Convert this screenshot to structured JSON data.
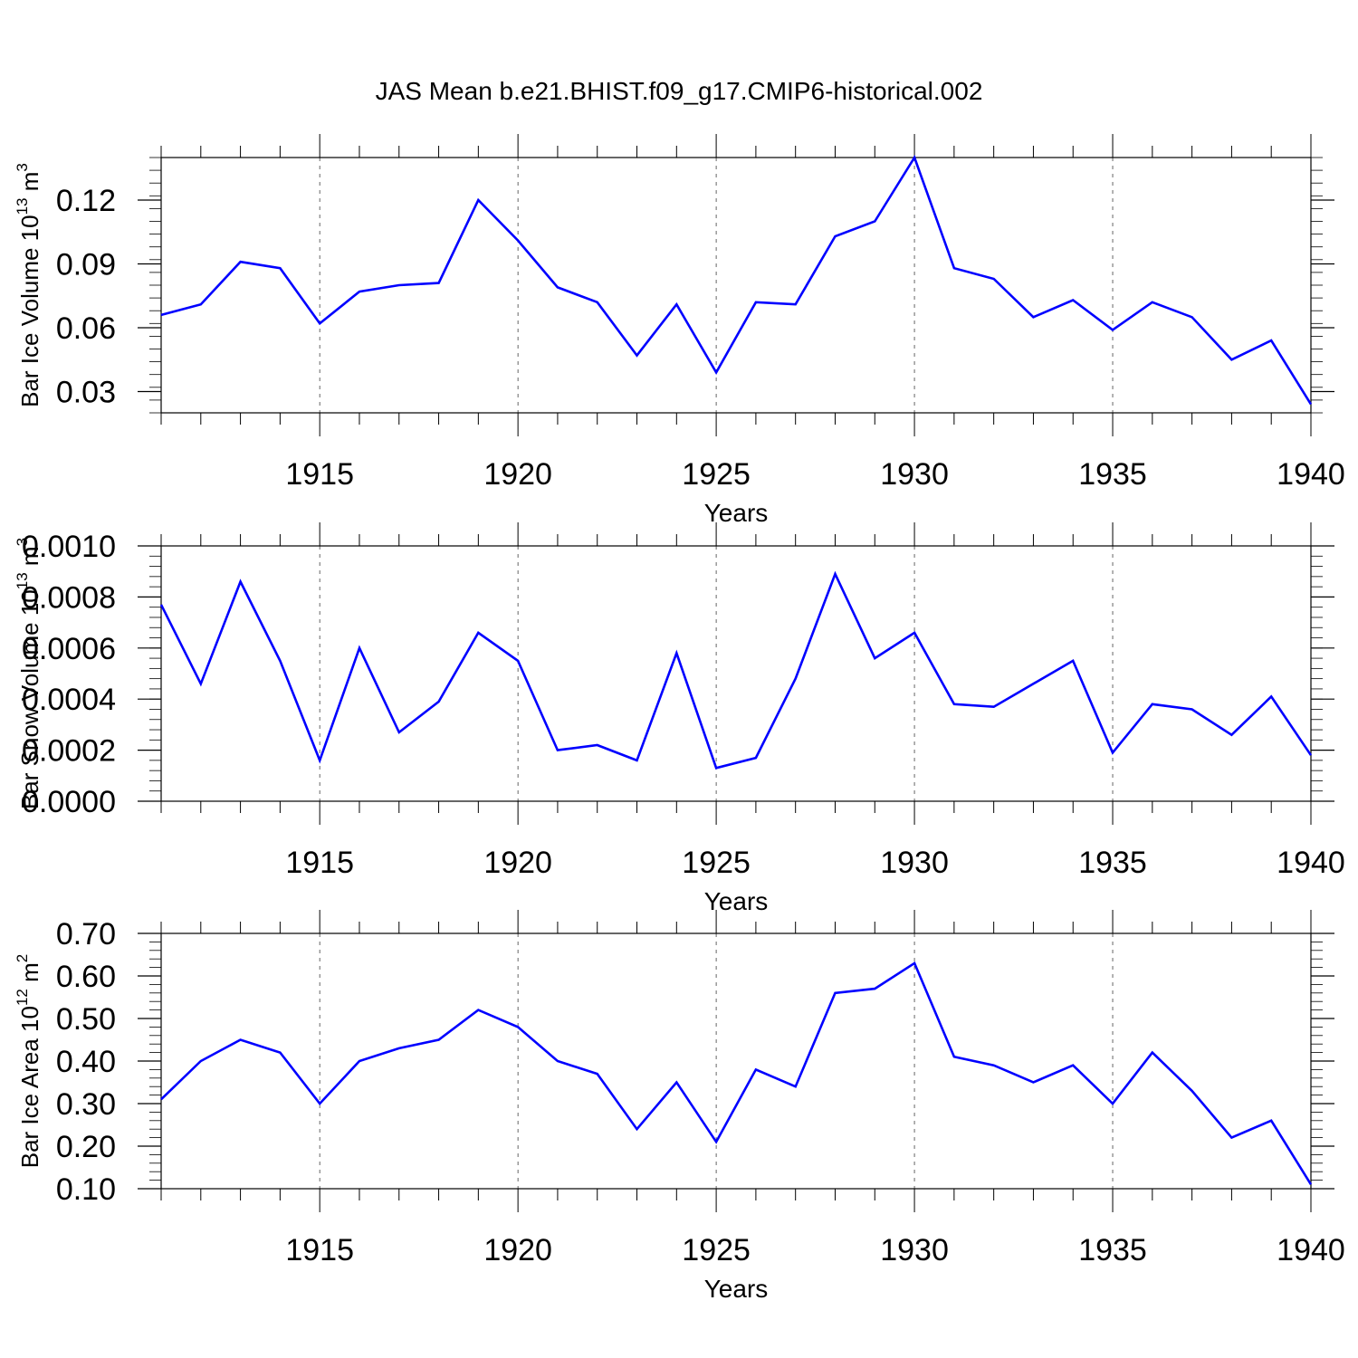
{
  "figure_title": "JAS Mean b.e21.BHIST.f09_g17.CMIP6-historical.002",
  "chart_data": [
    {
      "type": "line",
      "ylabel_main": "Bar Ice Volume 10",
      "ylabel_exp": "13",
      "ylabel_unit": " m",
      "ylabel_unit_exp": "3",
      "xlabel": "Years",
      "xlim": [
        1911,
        1940
      ],
      "ylim": [
        0.02,
        0.14
      ],
      "yticks": [
        0.03,
        0.06,
        0.09,
        0.12
      ],
      "ytick_labels": [
        "0.03",
        "0.06",
        "0.09",
        "0.12"
      ],
      "xticks": [
        1915,
        1920,
        1925,
        1930,
        1935,
        1940
      ],
      "xtick_labels": [
        "1915",
        "1920",
        "1925",
        "1930",
        "1935",
        "1940"
      ],
      "grid": "vertical-dashed-at-major-x",
      "line_color": "#0000ff",
      "x": [
        1911,
        1912,
        1913,
        1914,
        1915,
        1916,
        1917,
        1918,
        1919,
        1920,
        1921,
        1922,
        1923,
        1924,
        1925,
        1926,
        1927,
        1928,
        1929,
        1930,
        1931,
        1932,
        1933,
        1934,
        1935,
        1936,
        1937,
        1938,
        1939,
        1940
      ],
      "y": [
        0.066,
        0.071,
        0.091,
        0.088,
        0.062,
        0.077,
        0.08,
        0.081,
        0.12,
        0.101,
        0.079,
        0.072,
        0.047,
        0.071,
        0.039,
        0.072,
        0.071,
        0.103,
        0.11,
        0.14,
        0.088,
        0.083,
        0.065,
        0.073,
        0.059,
        0.072,
        0.065,
        0.045,
        0.054,
        0.024
      ]
    },
    {
      "type": "line",
      "ylabel_main": "Bar Snow Volume 10",
      "ylabel_exp": "13",
      "ylabel_unit": " m",
      "ylabel_unit_exp": "3",
      "xlabel": "Years",
      "xlim": [
        1911,
        1940
      ],
      "ylim": [
        0.0,
        0.001
      ],
      "yticks": [
        0.0,
        0.0002,
        0.0004,
        0.0006,
        0.0008,
        0.001
      ],
      "ytick_labels": [
        "0.0000",
        "0.0002",
        "0.0004",
        "0.0006",
        "0.0008",
        "0.0010"
      ],
      "xticks": [
        1915,
        1920,
        1925,
        1930,
        1935,
        1940
      ],
      "xtick_labels": [
        "1915",
        "1920",
        "1925",
        "1930",
        "1935",
        "1940"
      ],
      "grid": "vertical-dashed-at-major-x",
      "line_color": "#0000ff",
      "x": [
        1911,
        1912,
        1913,
        1914,
        1915,
        1916,
        1917,
        1918,
        1919,
        1920,
        1921,
        1922,
        1923,
        1924,
        1925,
        1926,
        1927,
        1928,
        1929,
        1930,
        1931,
        1932,
        1933,
        1934,
        1935,
        1936,
        1937,
        1938,
        1939,
        1940
      ],
      "y": [
        0.00077,
        0.00046,
        0.00086,
        0.00055,
        0.00016,
        0.0006,
        0.00027,
        0.00039,
        0.00066,
        0.00055,
        0.0002,
        0.00022,
        0.00016,
        0.00058,
        0.00013,
        0.00017,
        0.00048,
        0.00089,
        0.00056,
        0.00066,
        0.00038,
        0.00037,
        0.00046,
        0.00055,
        0.00019,
        0.00038,
        0.00036,
        0.00026,
        0.00041,
        0.00018
      ]
    },
    {
      "type": "line",
      "ylabel_main": "Bar Ice Area 10",
      "ylabel_exp": "12",
      "ylabel_unit": " m",
      "ylabel_unit_exp": "2",
      "xlabel": "Years",
      "xlim": [
        1911,
        1940
      ],
      "ylim": [
        0.1,
        0.7
      ],
      "yticks": [
        0.1,
        0.2,
        0.3,
        0.4,
        0.5,
        0.6,
        0.7
      ],
      "ytick_labels": [
        "0.10",
        "0.20",
        "0.30",
        "0.40",
        "0.50",
        "0.60",
        "0.70"
      ],
      "xticks": [
        1915,
        1920,
        1925,
        1930,
        1935,
        1940
      ],
      "xtick_labels": [
        "1915",
        "1920",
        "1925",
        "1930",
        "1935",
        "1940"
      ],
      "grid": "vertical-dashed-at-major-x",
      "line_color": "#0000ff",
      "x": [
        1911,
        1912,
        1913,
        1914,
        1915,
        1916,
        1917,
        1918,
        1919,
        1920,
        1921,
        1922,
        1923,
        1924,
        1925,
        1926,
        1927,
        1928,
        1929,
        1930,
        1931,
        1932,
        1933,
        1934,
        1935,
        1936,
        1937,
        1938,
        1939,
        1940
      ],
      "y": [
        0.31,
        0.4,
        0.45,
        0.42,
        0.3,
        0.4,
        0.43,
        0.45,
        0.52,
        0.48,
        0.4,
        0.37,
        0.24,
        0.35,
        0.21,
        0.38,
        0.34,
        0.56,
        0.57,
        0.63,
        0.41,
        0.39,
        0.35,
        0.39,
        0.3,
        0.42,
        0.33,
        0.22,
        0.26,
        0.11
      ]
    }
  ]
}
